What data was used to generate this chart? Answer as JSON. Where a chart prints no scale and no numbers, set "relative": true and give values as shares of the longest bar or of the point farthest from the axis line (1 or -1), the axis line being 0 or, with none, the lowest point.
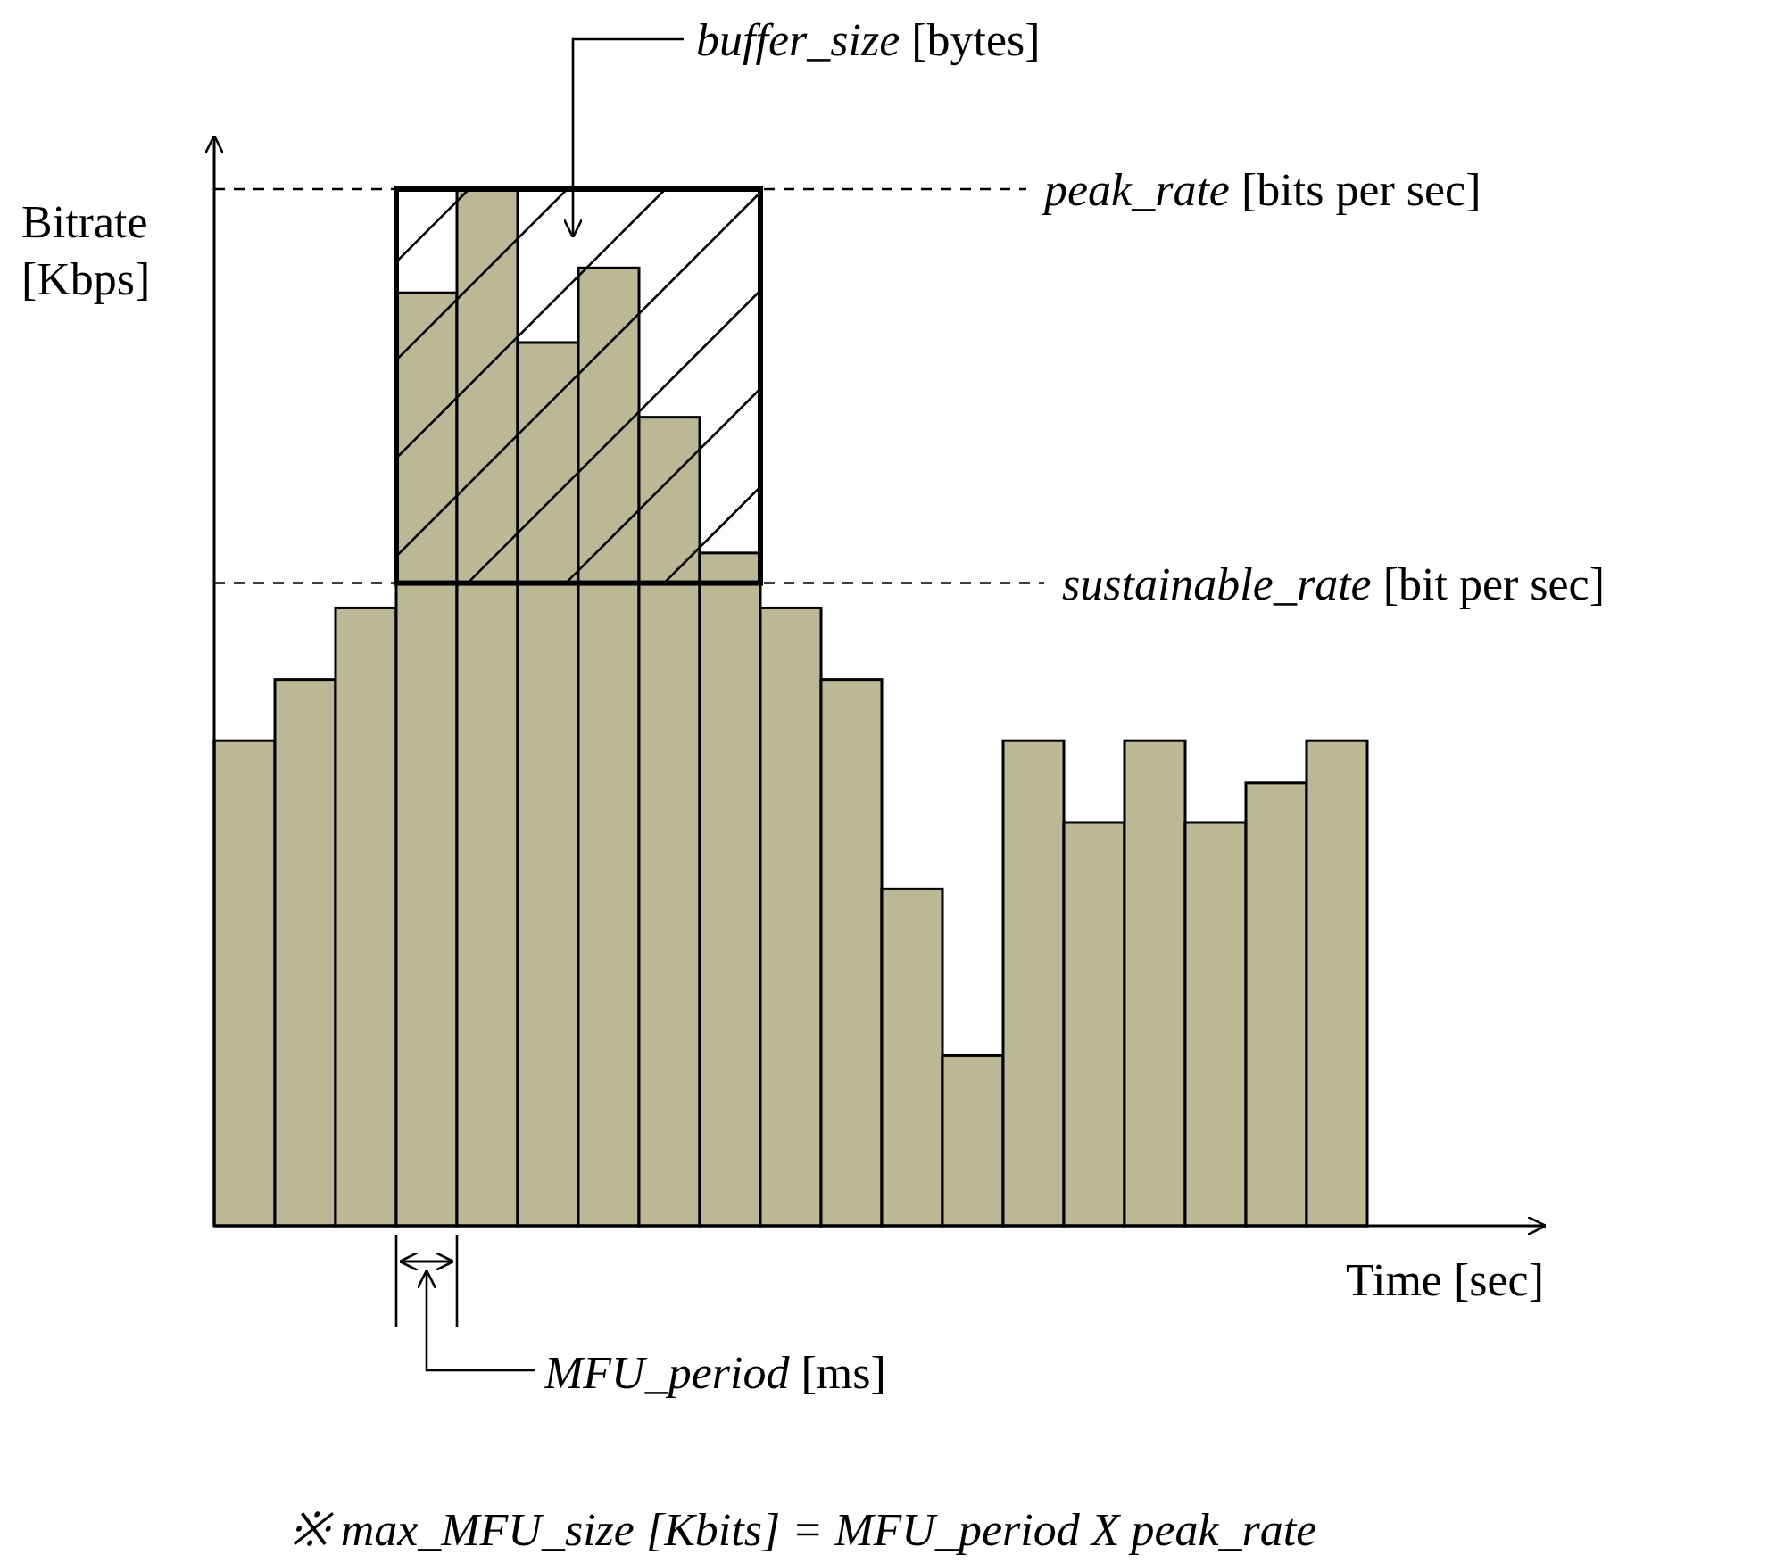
{
  "chart_data": {
    "type": "bar",
    "relative": true,
    "xlabel": "Time [sec]",
    "ylabel": "Bitrate [Kbps]",
    "categories": [
      null,
      null,
      null,
      null,
      null,
      null,
      null,
      null,
      null,
      null,
      null,
      null,
      null,
      null,
      null,
      null,
      null,
      null,
      null
    ],
    "values": [
      0.468,
      0.527,
      0.596,
      0.9,
      1,
      0.852,
      0.924,
      0.78,
      0.649,
      0.596,
      0.527,
      0.325,
      0.164,
      0.468,
      0.389,
      0.468,
      0.389,
      0.427,
      0.468
    ],
    "color": "#bcb795",
    "ref_lines": [
      {
        "axis": "y",
        "value": 1,
        "label": "peak_rate [bits per sec]",
        "line_style": "dashed"
      },
      {
        "axis": "y",
        "value": 0.62,
        "label": "sustainable_rate [bit per sec]",
        "line_style": "dashed"
      }
    ],
    "annotations": [
      "buffer_size [bytes]",
      "MFU_period [ms]",
      "※ max_MFU_size [Kbits] = MFU_period X peak_rate"
    ]
  }
}
